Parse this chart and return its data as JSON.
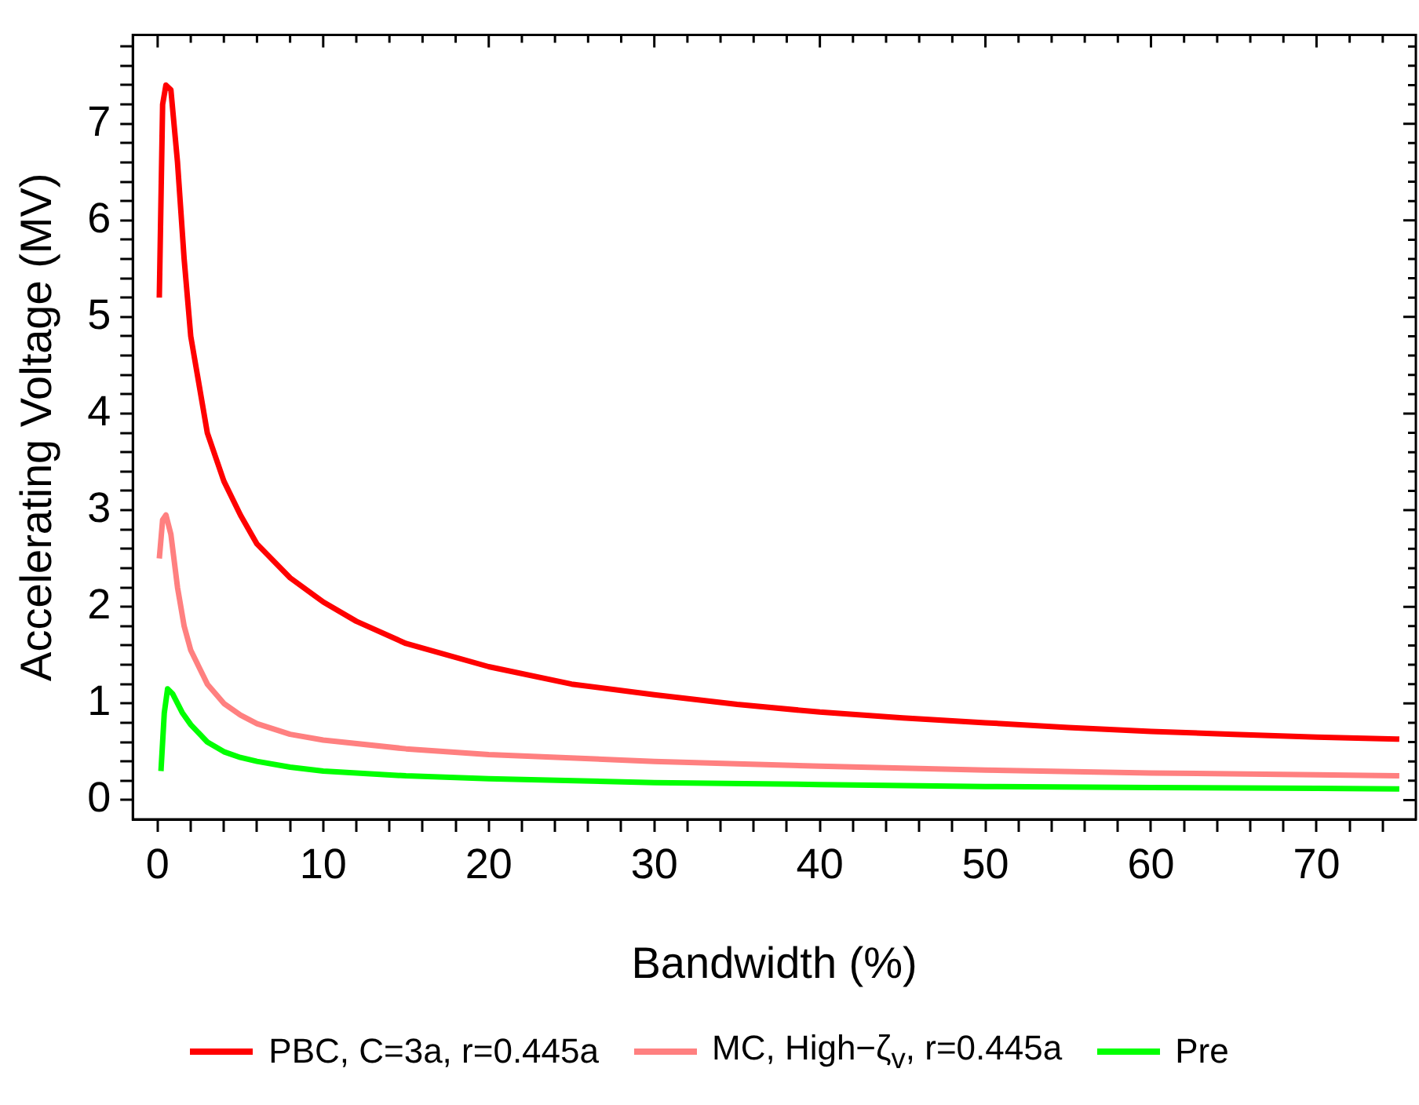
{
  "chart_data": {
    "type": "line",
    "xlabel": "Bandwidth (%)",
    "ylabel": "Accelerating Voltage (MV)",
    "xlim": [
      -1.5,
      76
    ],
    "ylim": [
      -0.2,
      7.92
    ],
    "xticks": [
      0,
      {
        "value": 2,
        "label": null
      },
      {
        "value": 4,
        "label": null
      },
      {
        "value": 6,
        "label": null
      },
      {
        "value": 8,
        "label": null
      },
      10,
      {
        "value": 12,
        "label": null
      },
      {
        "value": 14,
        "label": null
      },
      {
        "value": 16,
        "label": null
      },
      {
        "value": 18,
        "label": null
      },
      20,
      {
        "value": 22,
        "label": null
      },
      {
        "value": 24,
        "label": null
      },
      {
        "value": 26,
        "label": null
      },
      {
        "value": 28,
        "label": null
      },
      30,
      {
        "value": 32,
        "label": null
      },
      {
        "value": 34,
        "label": null
      },
      {
        "value": 36,
        "label": null
      },
      {
        "value": 38,
        "label": null
      },
      40,
      {
        "value": 42,
        "label": null
      },
      {
        "value": 44,
        "label": null
      },
      {
        "value": 46,
        "label": null
      },
      {
        "value": 48,
        "label": null
      },
      50,
      {
        "value": 52,
        "label": null
      },
      {
        "value": 54,
        "label": null
      },
      {
        "value": 56,
        "label": null
      },
      {
        "value": 58,
        "label": null
      },
      60,
      {
        "value": 62,
        "label": null
      },
      {
        "value": 64,
        "label": null
      },
      {
        "value": 66,
        "label": null
      },
      {
        "value": 68,
        "label": null
      },
      70,
      {
        "value": 72,
        "label": null
      },
      {
        "value": 74,
        "label": null
      }
    ],
    "yticks": [
      0,
      {
        "value": 0.2,
        "label": null
      },
      {
        "value": 0.4,
        "label": null
      },
      {
        "value": 0.6,
        "label": null
      },
      {
        "value": 0.8,
        "label": null
      },
      1,
      {
        "value": 1.2,
        "label": null
      },
      {
        "value": 1.4,
        "label": null
      },
      {
        "value": 1.6,
        "label": null
      },
      {
        "value": 1.8,
        "label": null
      },
      2,
      {
        "value": 2.2,
        "label": null
      },
      {
        "value": 2.4,
        "label": null
      },
      {
        "value": 2.6,
        "label": null
      },
      {
        "value": 2.8,
        "label": null
      },
      3,
      {
        "value": 3.2,
        "label": null
      },
      {
        "value": 3.4,
        "label": null
      },
      {
        "value": 3.6,
        "label": null
      },
      {
        "value": 3.8,
        "label": null
      },
      4,
      {
        "value": 4.2,
        "label": null
      },
      {
        "value": 4.4,
        "label": null
      },
      {
        "value": 4.6,
        "label": null
      },
      {
        "value": 4.8,
        "label": null
      },
      5,
      {
        "value": 5.2,
        "label": null
      },
      {
        "value": 5.4,
        "label": null
      },
      {
        "value": 5.6,
        "label": null
      },
      {
        "value": 5.8,
        "label": null
      },
      6,
      {
        "value": 6.2,
        "label": null
      },
      {
        "value": 6.4,
        "label": null
      },
      {
        "value": 6.6,
        "label": null
      },
      {
        "value": 6.8,
        "label": null
      },
      7,
      {
        "value": 7.2,
        "label": null
      },
      {
        "value": 7.4,
        "label": null
      },
      {
        "value": 7.6,
        "label": null
      },
      {
        "value": 7.8,
        "label": null
      }
    ],
    "grid": false,
    "legend": "bottom",
    "marker": "none",
    "line_style": "solid",
    "series": [
      {
        "name": "PBC, C=3a, r=0.445a",
        "color": "#ff0000",
        "x": [
          0.1,
          0.3,
          0.5,
          0.8,
          1.2,
          1.6,
          2,
          3,
          4,
          5,
          6,
          8,
          10,
          12,
          15,
          20,
          25,
          30,
          35,
          40,
          45,
          50,
          55,
          60,
          65,
          70,
          75
        ],
        "values": [
          5.2,
          7.2,
          7.4,
          7.35,
          6.6,
          5.6,
          4.8,
          3.8,
          3.3,
          2.95,
          2.65,
          2.3,
          2.05,
          1.85,
          1.62,
          1.38,
          1.2,
          1.09,
          0.99,
          0.91,
          0.85,
          0.8,
          0.75,
          0.71,
          0.68,
          0.65,
          0.63
        ]
      },
      {
        "name": "MC, High−ζ$_{v}$, r=0.445a",
        "color": "#ff8080",
        "x": [
          0.1,
          0.3,
          0.5,
          0.8,
          1.2,
          1.6,
          2,
          3,
          4,
          5,
          6,
          8,
          10,
          15,
          20,
          30,
          40,
          50,
          60,
          70,
          75
        ],
        "values": [
          2.5,
          2.9,
          2.95,
          2.75,
          2.2,
          1.8,
          1.55,
          1.2,
          1,
          0.88,
          0.79,
          0.68,
          0.62,
          0.53,
          0.47,
          0.4,
          0.35,
          0.31,
          0.28,
          0.26,
          0.25
        ]
      },
      {
        "name": "Pre",
        "color": "#00ff00",
        "x": [
          0.2,
          0.4,
          0.6,
          0.9,
          1.5,
          2,
          3,
          4,
          5,
          6,
          8,
          10,
          15,
          20,
          30,
          40,
          50,
          60,
          70,
          75
        ],
        "values": [
          0.3,
          0.9,
          1.15,
          1.1,
          0.9,
          0.78,
          0.6,
          0.5,
          0.44,
          0.4,
          0.34,
          0.3,
          0.25,
          0.22,
          0.18,
          0.16,
          0.14,
          0.13,
          0.12,
          0.115
        ]
      }
    ]
  }
}
